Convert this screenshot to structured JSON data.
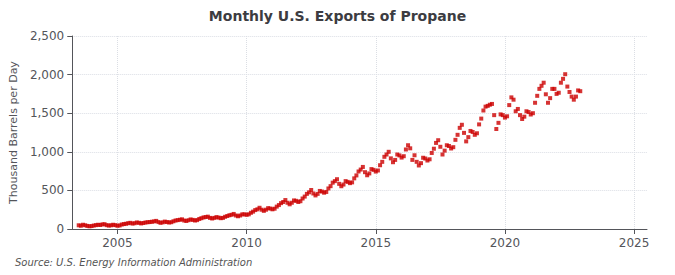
{
  "chart_data": {
    "type": "scatter",
    "title": "Monthly U.S. Exports of Propane",
    "ylabel": "Thousand Barrels per Day",
    "annotations": [
      "Source: U.S. Energy Information Administration"
    ],
    "color": "#cc0000",
    "marker": "square",
    "grid": true,
    "xlim": [
      2003.25,
      2025.5
    ],
    "xticks": [
      2005,
      2010,
      2015,
      2020,
      2025
    ],
    "ylim": [
      0,
      2500
    ],
    "yticks": [
      0,
      500,
      {
        "value": 1000,
        "label": "1,000"
      },
      {
        "value": 1500,
        "label": "1,500"
      },
      {
        "value": 2000,
        "label": "2,000"
      },
      {
        "value": 2500,
        "label": "2,500"
      }
    ],
    "x": [
      2003.5,
      2003.5833333333,
      2003.6666666667,
      2003.75,
      2003.8333333333,
      2003.9166666667,
      2004.0,
      2004.0833333333,
      2004.1666666667,
      2004.25,
      2004.3333333333,
      2004.4166666667,
      2004.5,
      2004.5833333333,
      2004.6666666667,
      2004.75,
      2004.8333333333,
      2004.9166666667,
      2005.0,
      2005.0833333333,
      2005.1666666667,
      2005.25,
      2005.3333333333,
      2005.4166666667,
      2005.5,
      2005.5833333333,
      2005.6666666667,
      2005.75,
      2005.8333333333,
      2005.9166666667,
      2006.0,
      2006.0833333333,
      2006.1666666667,
      2006.25,
      2006.3333333333,
      2006.4166666667,
      2006.5,
      2006.5833333333,
      2006.6666666667,
      2006.75,
      2006.8333333333,
      2006.9166666667,
      2007.0,
      2007.0833333333,
      2007.1666666667,
      2007.25,
      2007.3333333333,
      2007.4166666667,
      2007.5,
      2007.5833333333,
      2007.6666666667,
      2007.75,
      2007.8333333333,
      2007.9166666667,
      2008.0,
      2008.0833333333,
      2008.1666666667,
      2008.25,
      2008.3333333333,
      2008.4166666667,
      2008.5,
      2008.5833333333,
      2008.6666666667,
      2008.75,
      2008.8333333333,
      2008.9166666667,
      2009.0,
      2009.0833333333,
      2009.1666666667,
      2009.25,
      2009.3333333333,
      2009.4166666667,
      2009.5,
      2009.5833333333,
      2009.6666666667,
      2009.75,
      2009.8333333333,
      2009.9166666667,
      2010.0,
      2010.0833333333,
      2010.1666666667,
      2010.25,
      2010.3333333333,
      2010.4166666667,
      2010.5,
      2010.5833333333,
      2010.6666666667,
      2010.75,
      2010.8333333333,
      2010.9166666667,
      2011.0,
      2011.0833333333,
      2011.1666666667,
      2011.25,
      2011.3333333333,
      2011.4166666667,
      2011.5,
      2011.5833333333,
      2011.6666666667,
      2011.75,
      2011.8333333333,
      2011.9166666667,
      2012.0,
      2012.0833333333,
      2012.1666666667,
      2012.25,
      2012.3333333333,
      2012.4166666667,
      2012.5,
      2012.5833333333,
      2012.6666666667,
      2012.75,
      2012.8333333333,
      2012.9166666667,
      2013.0,
      2013.0833333333,
      2013.1666666667,
      2013.25,
      2013.3333333333,
      2013.4166666667,
      2013.5,
      2013.5833333333,
      2013.6666666667,
      2013.75,
      2013.8333333333,
      2013.9166666667,
      2014.0,
      2014.0833333333,
      2014.1666666667,
      2014.25,
      2014.3333333333,
      2014.4166666667,
      2014.5,
      2014.5833333333,
      2014.6666666667,
      2014.75,
      2014.8333333333,
      2014.9166666667,
      2015.0,
      2015.0833333333,
      2015.1666666667,
      2015.25,
      2015.3333333333,
      2015.4166666667,
      2015.5,
      2015.5833333333,
      2015.6666666667,
      2015.75,
      2015.8333333333,
      2015.9166666667,
      2016.0,
      2016.0833333333,
      2016.1666666667,
      2016.25,
      2016.3333333333,
      2016.4166666667,
      2016.5,
      2016.5833333333,
      2016.6666666667,
      2016.75,
      2016.8333333333,
      2016.9166666667,
      2017.0,
      2017.0833333333,
      2017.1666666667,
      2017.25,
      2017.3333333333,
      2017.4166666667,
      2017.5,
      2017.5833333333,
      2017.6666666667,
      2017.75,
      2017.8333333333,
      2017.9166666667,
      2018.0,
      2018.0833333333,
      2018.1666666667,
      2018.25,
      2018.3333333333,
      2018.4166666667,
      2018.5,
      2018.5833333333,
      2018.6666666667,
      2018.75,
      2018.8333333333,
      2018.9166666667,
      2019.0,
      2019.0833333333,
      2019.1666666667,
      2019.25,
      2019.3333333333,
      2019.4166666667,
      2019.5,
      2019.5833333333,
      2019.6666666667,
      2019.75,
      2019.8333333333,
      2019.9166666667,
      2020.0,
      2020.0833333333,
      2020.1666666667,
      2020.25,
      2020.3333333333,
      2020.4166666667,
      2020.5,
      2020.5833333333,
      2020.6666666667,
      2020.75,
      2020.8333333333,
      2020.9166666667,
      2021.0,
      2021.0833333333,
      2021.1666666667,
      2021.25,
      2021.3333333333,
      2021.4166666667,
      2021.5,
      2021.5833333333,
      2021.6666666667,
      2021.75,
      2021.8333333333,
      2021.9166666667,
      2022.0,
      2022.0833333333,
      2022.1666666667,
      2022.25,
      2022.3333333333,
      2022.4166666667,
      2022.5,
      2022.5833333333,
      2022.6666666667,
      2022.75,
      2022.8333333333,
      2022.9166666667
    ],
    "values": [
      48,
      42,
      55,
      48,
      40,
      35,
      38,
      45,
      50,
      55,
      52,
      60,
      62,
      50,
      44,
      48,
      55,
      50,
      42,
      46,
      58,
      64,
      68,
      75,
      80,
      70,
      75,
      85,
      80,
      72,
      78,
      84,
      88,
      90,
      94,
      98,
      105,
      90,
      80,
      86,
      96,
      90,
      84,
      88,
      100,
      110,
      115,
      120,
      125,
      110,
      104,
      114,
      124,
      118,
      110,
      115,
      130,
      140,
      150,
      155,
      160,
      144,
      136,
      144,
      154,
      148,
      140,
      144,
      158,
      168,
      178,
      184,
      195,
      175,
      165,
      175,
      190,
      190,
      184,
      190,
      210,
      225,
      245,
      255,
      275,
      250,
      235,
      250,
      270,
      265,
      255,
      263,
      290,
      310,
      335,
      350,
      375,
      340,
      320,
      340,
      370,
      365,
      350,
      360,
      395,
      420,
      455,
      475,
      505,
      460,
      435,
      455,
      493,
      485,
      470,
      480,
      525,
      555,
      600,
      620,
      645,
      585,
      554,
      576,
      620,
      610,
      594,
      604,
      656,
      694,
      745,
      770,
      804,
      736,
      696,
      720,
      776,
      766,
      744,
      758,
      826,
      870,
      935,
      965,
      1000,
      915,
      865,
      895,
      965,
      953,
      925,
      943,
      1030,
      1085,
      1045,
      895,
      955,
      870,
      823,
      853,
      923,
      913,
      887,
      903,
      985,
      1040,
      1115,
      1150,
      1065,
      965,
      1015,
      1085,
      1075,
      1043,
      1060,
      1155,
      1220,
      1310,
      1350,
      1245,
      1135,
      1190,
      1270,
      1257,
      1220,
      1240,
      1355,
      1430,
      1535,
      1585,
      1595,
      1610,
      1620,
      1475,
      1295,
      1375,
      1485,
      1475,
      1443,
      1460,
      1605,
      1705,
      1675,
      1525,
      1555,
      1475,
      1425,
      1455,
      1525,
      1515,
      1483,
      1500,
      1635,
      1725,
      1815,
      1855,
      1895,
      1745,
      1635,
      1695,
      1815,
      1815,
      1750,
      1765,
      1895,
      1945,
      2005,
      1845,
      1775,
      1715,
      1675,
      1715,
      1795,
      1785
    ]
  }
}
